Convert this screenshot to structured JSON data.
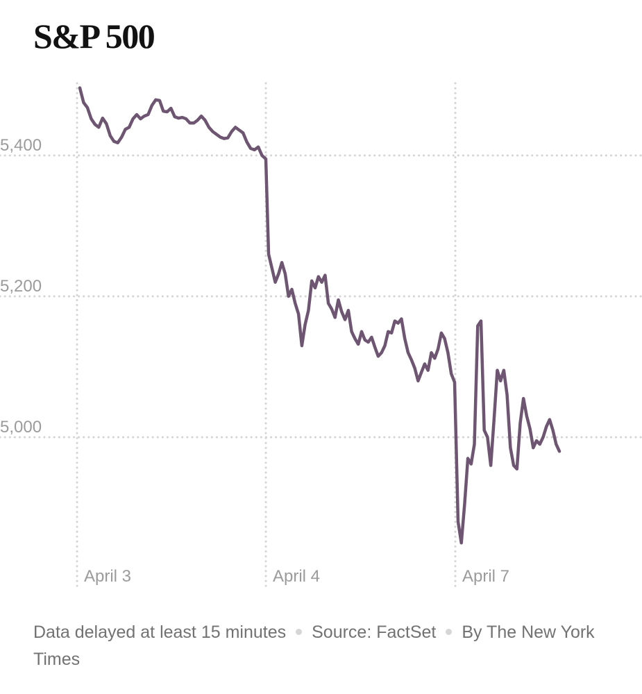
{
  "title": "S&P 500",
  "chart_data": {
    "type": "line",
    "title": "S&P 500",
    "xlabel": "",
    "ylabel": "",
    "x_ticks": [
      "April 3",
      "April 4",
      "April 7"
    ],
    "y_ticks": [
      5000,
      5200,
      5400
    ],
    "y_tick_labels": [
      "5,000",
      "5,200",
      "5,400"
    ],
    "ylim": [
      4820,
      5500
    ],
    "grid": true,
    "line_color": "#6e5672",
    "series": [
      {
        "sessions": [
          {
            "day": "April 3",
            "values": [
              5496,
              5475,
              5468,
              5452,
              5444,
              5440,
              5453,
              5445,
              5428,
              5420,
              5418,
              5426,
              5437,
              5440,
              5452,
              5458,
              5452,
              5456,
              5458,
              5471,
              5479,
              5478,
              5463,
              5462,
              5467,
              5455,
              5453,
              5454,
              5452,
              5446,
              5446,
              5450,
              5456,
              5450,
              5440,
              5434,
              5430,
              5426,
              5424,
              5425,
              5434,
              5440,
              5436,
              5432,
              5419,
              5410,
              5408,
              5412,
              5400,
              5395
            ]
          },
          {
            "day": "April 4",
            "values": [
              5260,
              5240,
              5220,
              5232,
              5248,
              5232,
              5200,
              5210,
              5190,
              5175,
              5130,
              5160,
              5180,
              5222,
              5212,
              5228,
              5220,
              5230,
              5190,
              5182,
              5170,
              5195,
              5178,
              5167,
              5180,
              5150,
              5140,
              5132,
              5150,
              5138,
              5135,
              5142,
              5128,
              5115,
              5120,
              5130,
              5150,
              5148,
              5165,
              5162,
              5168,
              5140,
              5120,
              5110,
              5098,
              5080,
              5092,
              5104,
              5095,
              5120,
              5112,
              5125,
              5148,
              5140,
              5120,
              5090,
              5078
            ]
          },
          {
            "day": "April 7",
            "values": [
              4880,
              4850,
              4905,
              4970,
              4962,
              4990,
              5158,
              5165,
              5010,
              5000,
              4960,
              5025,
              5095,
              5080,
              5095,
              5060,
              4985,
              4960,
              4955,
              5020,
              5055,
              5030,
              5012,
              4985,
              4995,
              4990,
              5000,
              5015,
              5025,
              5010,
              4990,
              4980
            ]
          }
        ]
      }
    ]
  },
  "footer": {
    "note": "Data delayed at least 15 minutes",
    "source": "Source: FactSet",
    "byline": "By The New York Times"
  }
}
